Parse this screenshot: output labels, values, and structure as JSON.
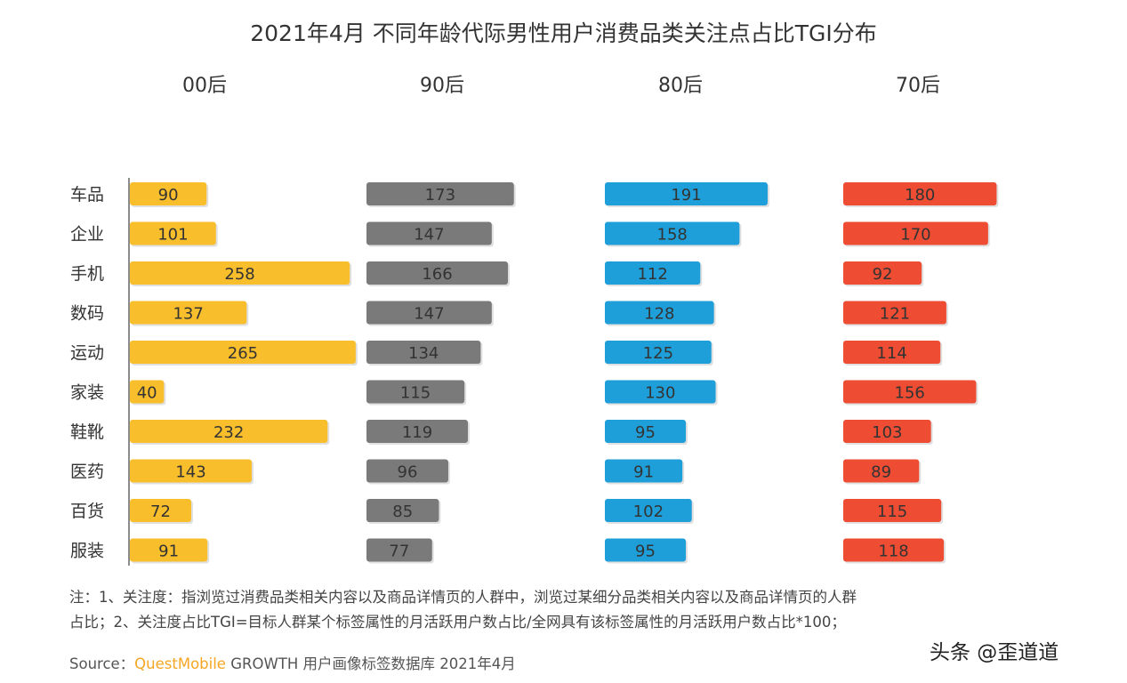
{
  "chart_data": {
    "type": "bar",
    "orientation": "horizontal",
    "title": "2021年4月 不同年龄代际男性用户消费品类关注点占比TGI分布",
    "categories": [
      "车品",
      "企业",
      "手机",
      "数码",
      "运动",
      "家装",
      "鞋靴",
      "医药",
      "百货",
      "服装"
    ],
    "panels": [
      {
        "name": "00后",
        "color": "#F9BE2C",
        "values": [
          90,
          101,
          258,
          137,
          265,
          40,
          232,
          143,
          72,
          91
        ]
      },
      {
        "name": "90后",
        "color": "#7A7A7A",
        "values": [
          173,
          147,
          166,
          147,
          134,
          115,
          119,
          96,
          85,
          77
        ]
      },
      {
        "name": "80后",
        "color": "#1E9FDA",
        "values": [
          191,
          158,
          112,
          128,
          125,
          130,
          95,
          91,
          102,
          95
        ]
      },
      {
        "name": "70后",
        "color": "#EE4C33",
        "values": [
          180,
          170,
          92,
          121,
          114,
          156,
          103,
          89,
          115,
          118
        ]
      }
    ],
    "data_labels": true,
    "legend": "none",
    "grid": false
  },
  "notes": [
    "注：1、关注度：指浏览过消费品类相关内容以及商品详情页的人群中，浏览过某细分品类相关内容以及商品详情页的人群",
    "占比；2、关注度占比TGI=目标人群某个标签属性的月活跃用户数占比/全网具有该标签属性的月活跃用户数占比*100；"
  ],
  "source": {
    "prefix": "Source：",
    "brand": "QuestMobile",
    "rest": " GROWTH 用户画像标签数据库 2021年4月"
  },
  "credit": "头条 @歪道道"
}
